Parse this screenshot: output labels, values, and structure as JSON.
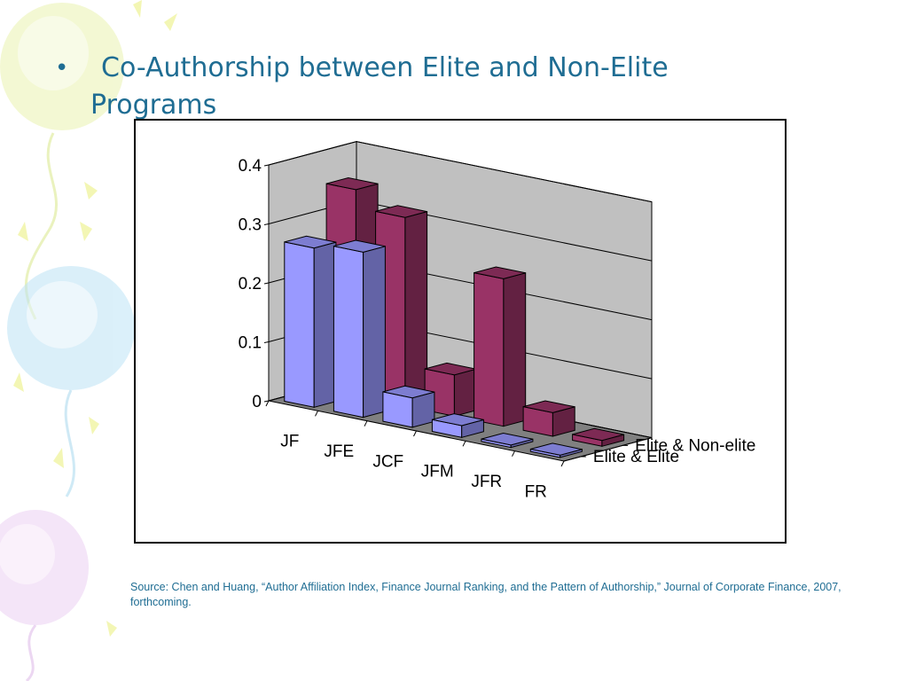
{
  "slide": {
    "bullet": "•",
    "title_part1": "Co-Authorship between Elite and Non-Elite",
    "title_part2": "Programs",
    "source": "Source: Chen and Huang, “Author Affiliation Index, Finance Journal Ranking, and the Pattern of Authorship,” Journal of Corporate Finance, 2007, forthcoming."
  },
  "colors": {
    "title": "#1f6d93",
    "series_front": "#9999ff",
    "series_back": "#993366",
    "wall": "#c0c0c0",
    "floor": "#808080"
  },
  "chart_data": {
    "type": "bar",
    "title": "",
    "categories": [
      "JF",
      "JFE",
      "JCF",
      "JFM",
      "JFR",
      "FR"
    ],
    "series": [
      {
        "name": "Elite & Elite",
        "values": [
          0.27,
          0.28,
          0.05,
          0.02,
          0.0,
          0.0
        ]
      },
      {
        "name": "Elite & Non-elite",
        "values": [
          0.35,
          0.32,
          0.07,
          0.25,
          0.04,
          0.01
        ]
      }
    ],
    "ylim": [
      0,
      0.4
    ],
    "yticks": [
      "0",
      "0.1",
      "0.2",
      "0.3",
      "0.4"
    ],
    "grid": true,
    "projection": "3d-column",
    "legend": "series labels on depth axis at right"
  }
}
